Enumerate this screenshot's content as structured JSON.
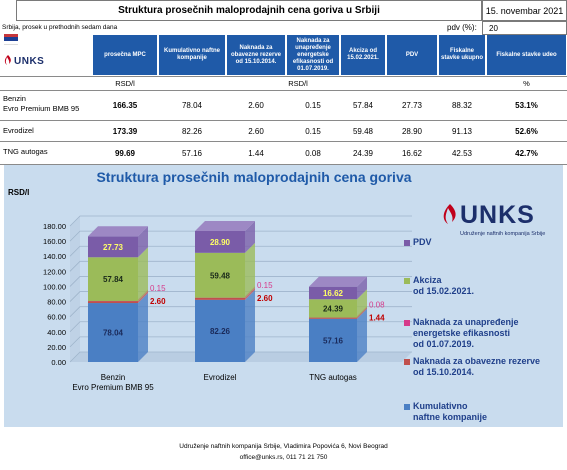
{
  "header": {
    "title": "Struktura prosečnih maloprodajnih cena goriva u Srbiji",
    "date": "15. novembar 2021",
    "subnote": "Srbija, prosek u prethodnih sedam dana",
    "pdv_label": "pdv (%):",
    "pdv_value": "20",
    "logo_text": "UNKS"
  },
  "table": {
    "columns": [
      "prosečna MPC",
      "Kumulativno naftne kompanije",
      "Naknada za obavezne rezerve od 15.10.2014.",
      "Naknada za unapređenje energetske efikasnosti od 01.07.2019.",
      "Akciza od 15.02.2021.",
      "PDV",
      "Fiskalne stavke ukupno",
      "Fiskalne stavke udeo"
    ],
    "units": [
      "RSD/l",
      "RSD/l",
      "%"
    ],
    "rows": [
      {
        "name_line1": "Benzin",
        "name_line2": "Evro Premium BMB 95",
        "values": [
          "166.35",
          "78.04",
          "2.60",
          "0.15",
          "57.84",
          "27.73",
          "88.32",
          "53.1%"
        ]
      },
      {
        "name_line1": "Evrodizel",
        "name_line2": "",
        "values": [
          "173.39",
          "82.26",
          "2.60",
          "0.15",
          "59.48",
          "28.90",
          "91.13",
          "52.6%"
        ]
      },
      {
        "name_line1": "TNG autogas",
        "name_line2": "",
        "values": [
          "99.69",
          "57.16",
          "1.44",
          "0.08",
          "24.39",
          "16.62",
          "42.53",
          "42.7%"
        ]
      }
    ]
  },
  "chart_data": {
    "type": "bar",
    "stacked": true,
    "title": "Struktura prosečnih maloprodajnih cena goriva",
    "ylabel": "RSD/l",
    "ylim": [
      0,
      180
    ],
    "yticks": [
      "0.00",
      "20.00",
      "40.00",
      "60.00",
      "80.00",
      "100.00",
      "120.00",
      "140.00",
      "160.00",
      "180.00"
    ],
    "categories": [
      "Benzin Evro Premium BMB 95",
      "Evrodizel",
      "TNG autogas"
    ],
    "category_labels": [
      [
        "Benzin",
        "Evro Premium BMB 95"
      ],
      [
        "Evrodizel"
      ],
      [
        "TNG autogas"
      ]
    ],
    "series": [
      {
        "name": "Kumulativno naftne kompanije",
        "legend": [
          "Kumulativno",
          "naftne kompanije"
        ],
        "values": [
          78.04,
          82.26,
          57.16
        ],
        "labels": [
          "78.04",
          "82.26",
          "57.16"
        ],
        "color": "#4a7fc4"
      },
      {
        "name": "Naknada za obavezne rezerve od 15.10.2014.",
        "legend": [
          "Naknada za obavezne rezerve",
          "od 15.10.2014."
        ],
        "values": [
          2.6,
          2.6,
          1.44
        ],
        "labels": [
          "2.60",
          "2.60",
          "1.44"
        ],
        "color": "#c0504d"
      },
      {
        "name": "Naknada za unapređenje energetske efikasnosti od 01.07.2019.",
        "legend": [
          "Naknada za unapređenje",
          "energetske efikasnosti",
          "od 01.07.2019."
        ],
        "values": [
          0.15,
          0.15,
          0.08
        ],
        "labels": [
          "0.15",
          "0.15",
          "0.08"
        ],
        "color": "#d63a8a"
      },
      {
        "name": "Akciza od 15.02.2021.",
        "legend": [
          "Akciza",
          "od 15.02.2021."
        ],
        "values": [
          57.84,
          59.48,
          24.39
        ],
        "labels": [
          "57.84",
          "59.48",
          "24.39"
        ],
        "color": "#9bbb59"
      },
      {
        "name": "PDV",
        "legend": [
          "PDV"
        ],
        "values": [
          27.73,
          28.9,
          16.62
        ],
        "labels": [
          "27.73",
          "28.90",
          "16.62"
        ],
        "color": "#7a5ca8"
      }
    ],
    "grid": true,
    "legend_position": "right"
  },
  "chart_logo": {
    "text": "UNKS",
    "subtitle": "Udruženje naftnih kompanija Srbije"
  },
  "footer": {
    "line1": "Udruženje naftnih kompanija Srbije, Vladimira Popovića 6, Novi Beograd",
    "line2": "office@unks.rs, 011 71 21 750"
  },
  "colors": {
    "header_blue": "#1f5aa8",
    "title_blue": "#1f5aa8",
    "chart_bg": "#c9dcee",
    "label_yellow": "#ffff66",
    "label_red": "#c00000",
    "label_pink": "#d63a8a"
  }
}
